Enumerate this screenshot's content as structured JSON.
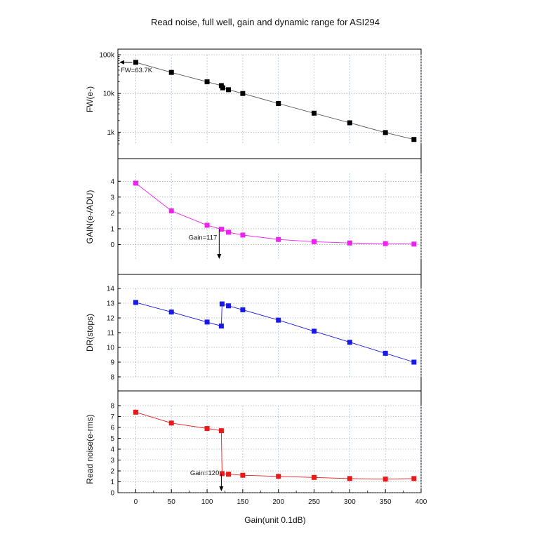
{
  "chart_data": {
    "type": "line",
    "title": "Read noise, full well, gain and dynamic range for ASI294",
    "xlabel": "Gain(unit 0.1dB)",
    "xlim": [
      -25,
      400
    ],
    "x_ticks": [
      "0",
      "50",
      "100",
      "150",
      "200",
      "250",
      "300",
      "350",
      "400"
    ],
    "grid": true,
    "panels": [
      {
        "id": "fw",
        "ylabel": "FW(e-)",
        "scale": "log",
        "ylim": [
          500,
          100000
        ],
        "y_ticks": [
          {
            "v": 1000,
            "label": "1k"
          },
          {
            "v": 10000,
            "label": "10k"
          },
          {
            "v": 100000,
            "label": "100k"
          }
        ],
        "color": "#000000",
        "series": [
          {
            "x": [
              0,
              50,
              100,
              120,
              122,
              130,
              150,
              200,
              250,
              300,
              350,
              390
            ],
            "y": [
              63700,
              35000,
              20000,
              16000,
              14000,
              12500,
              10000,
              5500,
              3100,
              1750,
              980,
              650
            ]
          }
        ],
        "annotation": {
          "text": "FW=63.7K",
          "x": 0,
          "y": 63700
        }
      },
      {
        "id": "gain",
        "ylabel": "GAIN(e-/ADU)",
        "scale": "linear",
        "ylim": [
          -1,
          4.5
        ],
        "y_ticks": [
          {
            "v": 0,
            "label": "0"
          },
          {
            "v": 1,
            "label": "1"
          },
          {
            "v": 2,
            "label": "2"
          },
          {
            "v": 3,
            "label": "3"
          },
          {
            "v": 4,
            "label": "4"
          }
        ],
        "color": "#ee22ee",
        "series": [
          {
            "x": [
              0,
              50,
              100,
              120,
              130,
              150,
              200,
              250,
              300,
              350,
              390
            ],
            "y": [
              3.88,
              2.13,
              1.22,
              0.97,
              0.78,
              0.6,
              0.32,
              0.18,
              0.1,
              0.06,
              0.03
            ]
          }
        ],
        "annotation": {
          "text": "Gain=117",
          "x": 117,
          "y": 0.97
        }
      },
      {
        "id": "dr",
        "ylabel": "DR(stops)",
        "scale": "linear",
        "ylim": [
          8,
          14
        ],
        "y_ticks": [
          {
            "v": 8,
            "label": "8"
          },
          {
            "v": 9,
            "label": "9"
          },
          {
            "v": 10,
            "label": "10"
          },
          {
            "v": 11,
            "label": "11"
          },
          {
            "v": 12,
            "label": "12"
          },
          {
            "v": 13,
            "label": "13"
          },
          {
            "v": 14,
            "label": "14"
          }
        ],
        "color": "#1a1ae6",
        "series": [
          {
            "x": [
              0,
              50,
              100,
              120,
              121,
              130,
              150,
              200,
              250,
              300,
              350,
              390
            ],
            "y": [
              13.05,
              12.4,
              11.72,
              11.45,
              12.95,
              12.82,
              12.55,
              11.85,
              11.1,
              10.35,
              9.6,
              9.0
            ]
          }
        ],
        "annotation": null
      },
      {
        "id": "rn",
        "ylabel": "Read noise(e-rms)",
        "scale": "linear",
        "ylim": [
          0,
          8
        ],
        "y_ticks": [
          {
            "v": 0,
            "label": "0"
          },
          {
            "v": 1,
            "label": "1"
          },
          {
            "v": 2,
            "label": "2"
          },
          {
            "v": 3,
            "label": "3"
          },
          {
            "v": 4,
            "label": "4"
          },
          {
            "v": 5,
            "label": "5"
          },
          {
            "v": 6,
            "label": "6"
          },
          {
            "v": 7,
            "label": "7"
          },
          {
            "v": 8,
            "label": "8"
          }
        ],
        "color": "#e81a1a",
        "series": [
          {
            "x": [
              0,
              50,
              100,
              120,
              121,
              130,
              150,
              200,
              250,
              300,
              350,
              390
            ],
            "y": [
              7.4,
              6.4,
              5.9,
              5.7,
              1.75,
              1.7,
              1.6,
              1.5,
              1.4,
              1.3,
              1.25,
              1.3
            ]
          }
        ],
        "annotation": {
          "text": "Gain=120",
          "x": 120,
          "y": 1.75
        }
      }
    ]
  }
}
